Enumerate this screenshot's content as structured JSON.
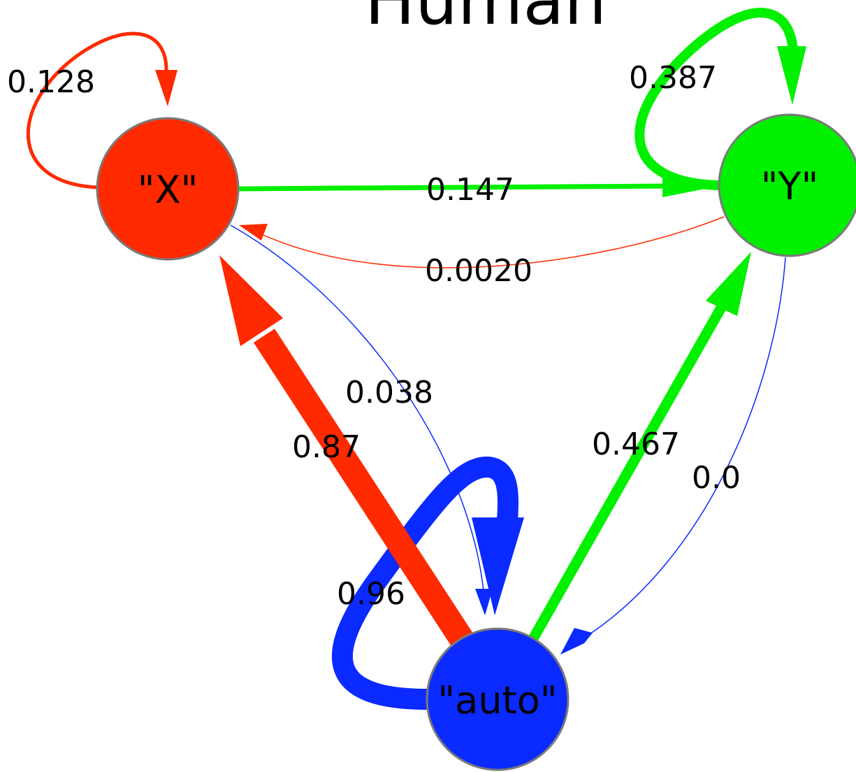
{
  "title": "Human",
  "colors": {
    "x": "#ff2a00",
    "y": "#00f000",
    "auto": "#0a2aff",
    "node_stroke": "#7a7a7a"
  },
  "nodes": {
    "x": "\"X\"",
    "y": "\"Y\"",
    "auto": "\"auto\""
  },
  "edges": {
    "x_to_x": "0.128",
    "y_to_y": "0.387",
    "x_to_y": "0.147",
    "y_to_x": "0.0020",
    "x_to_auto": "0.038",
    "auto_to_x": "0.87",
    "auto_to_y": "0.467",
    "y_to_auto": "0.0",
    "auto_to_auto": "0.96"
  }
}
